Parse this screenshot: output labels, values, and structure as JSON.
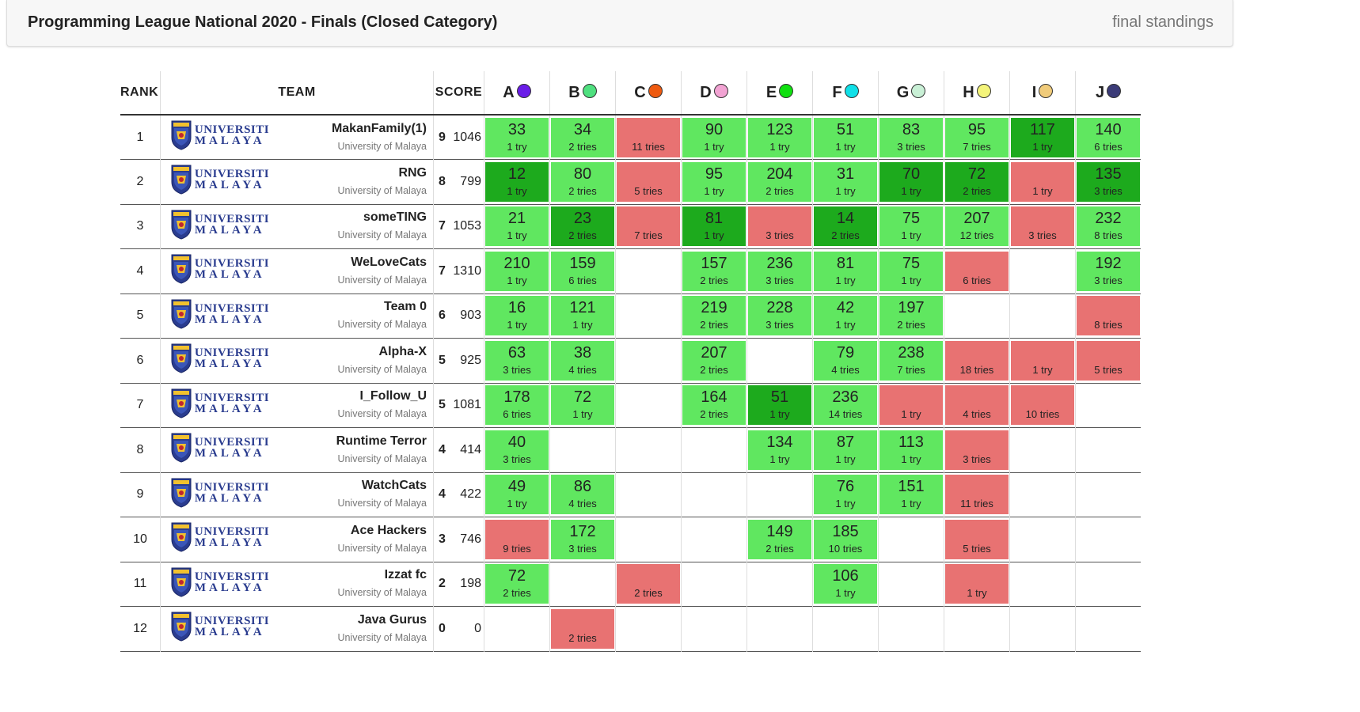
{
  "header": {
    "title": "Programming League National 2020 - Finals (Closed Category)",
    "status": "final standings"
  },
  "columns": {
    "rank": "RANK",
    "team": "TEAM",
    "score": "SCORE"
  },
  "logo": {
    "line1": "UNIVERSITI",
    "line2": "MALAYA",
    "icon": "university-shield-icon"
  },
  "problems": [
    {
      "label": "A",
      "color": "#6a1de8"
    },
    {
      "label": "B",
      "color": "#4fe07f"
    },
    {
      "label": "C",
      "color": "#ee5a10"
    },
    {
      "label": "D",
      "color": "#f2a3d3"
    },
    {
      "label": "E",
      "color": "#10e010"
    },
    {
      "label": "F",
      "color": "#10e0e8"
    },
    {
      "label": "G",
      "color": "#c9f0d6"
    },
    {
      "label": "H",
      "color": "#f4f47a"
    },
    {
      "label": "I",
      "color": "#f0cb7a"
    },
    {
      "label": "J",
      "color": "#3b3b78"
    }
  ],
  "teams": [
    {
      "rank": "1",
      "name": "MakanFamily(1)",
      "affiliation": "University of Malaya",
      "solved": "9",
      "penalty": "1046",
      "cells": [
        {
          "s": "solved",
          "time": "33",
          "tries": "1 try"
        },
        {
          "s": "solved",
          "time": "34",
          "tries": "2 tries"
        },
        {
          "s": "wrong",
          "time": "",
          "tries": "11 tries"
        },
        {
          "s": "solved",
          "time": "90",
          "tries": "1 try"
        },
        {
          "s": "solved",
          "time": "123",
          "tries": "1 try"
        },
        {
          "s": "solved",
          "time": "51",
          "tries": "1 try"
        },
        {
          "s": "solved",
          "time": "83",
          "tries": "3 tries"
        },
        {
          "s": "solved",
          "time": "95",
          "tries": "7 tries"
        },
        {
          "s": "first",
          "time": "117",
          "tries": "1 try"
        },
        {
          "s": "solved",
          "time": "140",
          "tries": "6 tries"
        }
      ]
    },
    {
      "rank": "2",
      "name": "RNG",
      "affiliation": "University of Malaya",
      "solved": "8",
      "penalty": "799",
      "cells": [
        {
          "s": "first",
          "time": "12",
          "tries": "1 try"
        },
        {
          "s": "solved",
          "time": "80",
          "tries": "2 tries"
        },
        {
          "s": "wrong",
          "time": "",
          "tries": "5 tries"
        },
        {
          "s": "solved",
          "time": "95",
          "tries": "1 try"
        },
        {
          "s": "solved",
          "time": "204",
          "tries": "2 tries"
        },
        {
          "s": "solved",
          "time": "31",
          "tries": "1 try"
        },
        {
          "s": "first",
          "time": "70",
          "tries": "1 try"
        },
        {
          "s": "first",
          "time": "72",
          "tries": "2 tries"
        },
        {
          "s": "wrong",
          "time": "",
          "tries": "1 try"
        },
        {
          "s": "first",
          "time": "135",
          "tries": "3 tries"
        }
      ]
    },
    {
      "rank": "3",
      "name": "someTING",
      "affiliation": "University of Malaya",
      "solved": "7",
      "penalty": "1053",
      "cells": [
        {
          "s": "solved",
          "time": "21",
          "tries": "1 try"
        },
        {
          "s": "first",
          "time": "23",
          "tries": "2 tries"
        },
        {
          "s": "wrong",
          "time": "",
          "tries": "7 tries"
        },
        {
          "s": "first",
          "time": "81",
          "tries": "1 try"
        },
        {
          "s": "wrong",
          "time": "",
          "tries": "3 tries"
        },
        {
          "s": "first",
          "time": "14",
          "tries": "2 tries"
        },
        {
          "s": "solved",
          "time": "75",
          "tries": "1 try"
        },
        {
          "s": "solved",
          "time": "207",
          "tries": "12 tries"
        },
        {
          "s": "wrong",
          "time": "",
          "tries": "3 tries"
        },
        {
          "s": "solved",
          "time": "232",
          "tries": "8 tries"
        }
      ]
    },
    {
      "rank": "4",
      "name": "WeLoveCats",
      "affiliation": "University of Malaya",
      "solved": "7",
      "penalty": "1310",
      "cells": [
        {
          "s": "solved",
          "time": "210",
          "tries": "1 try"
        },
        {
          "s": "solved",
          "time": "159",
          "tries": "6 tries"
        },
        {
          "s": "",
          "time": "",
          "tries": ""
        },
        {
          "s": "solved",
          "time": "157",
          "tries": "2 tries"
        },
        {
          "s": "solved",
          "time": "236",
          "tries": "3 tries"
        },
        {
          "s": "solved",
          "time": "81",
          "tries": "1 try"
        },
        {
          "s": "solved",
          "time": "75",
          "tries": "1 try"
        },
        {
          "s": "wrong",
          "time": "",
          "tries": "6 tries"
        },
        {
          "s": "",
          "time": "",
          "tries": ""
        },
        {
          "s": "solved",
          "time": "192",
          "tries": "3 tries"
        }
      ]
    },
    {
      "rank": "5",
      "name": "Team 0",
      "affiliation": "University of Malaya",
      "solved": "6",
      "penalty": "903",
      "cells": [
        {
          "s": "solved",
          "time": "16",
          "tries": "1 try"
        },
        {
          "s": "solved",
          "time": "121",
          "tries": "1 try"
        },
        {
          "s": "",
          "time": "",
          "tries": ""
        },
        {
          "s": "solved",
          "time": "219",
          "tries": "2 tries"
        },
        {
          "s": "solved",
          "time": "228",
          "tries": "3 tries"
        },
        {
          "s": "solved",
          "time": "42",
          "tries": "1 try"
        },
        {
          "s": "solved",
          "time": "197",
          "tries": "2 tries"
        },
        {
          "s": "",
          "time": "",
          "tries": ""
        },
        {
          "s": "",
          "time": "",
          "tries": ""
        },
        {
          "s": "wrong",
          "time": "",
          "tries": "8 tries"
        }
      ]
    },
    {
      "rank": "6",
      "name": "Alpha-X",
      "affiliation": "University of Malaya",
      "solved": "5",
      "penalty": "925",
      "cells": [
        {
          "s": "solved",
          "time": "63",
          "tries": "3 tries"
        },
        {
          "s": "solved",
          "time": "38",
          "tries": "4 tries"
        },
        {
          "s": "",
          "time": "",
          "tries": ""
        },
        {
          "s": "solved",
          "time": "207",
          "tries": "2 tries"
        },
        {
          "s": "",
          "time": "",
          "tries": ""
        },
        {
          "s": "solved",
          "time": "79",
          "tries": "4 tries"
        },
        {
          "s": "solved",
          "time": "238",
          "tries": "7 tries"
        },
        {
          "s": "wrong",
          "time": "",
          "tries": "18 tries"
        },
        {
          "s": "wrong",
          "time": "",
          "tries": "1 try"
        },
        {
          "s": "wrong",
          "time": "",
          "tries": "5 tries"
        }
      ]
    },
    {
      "rank": "7",
      "name": "I_Follow_U",
      "affiliation": "University of Malaya",
      "solved": "5",
      "penalty": "1081",
      "cells": [
        {
          "s": "solved",
          "time": "178",
          "tries": "6 tries"
        },
        {
          "s": "solved",
          "time": "72",
          "tries": "1 try"
        },
        {
          "s": "",
          "time": "",
          "tries": ""
        },
        {
          "s": "solved",
          "time": "164",
          "tries": "2 tries"
        },
        {
          "s": "first",
          "time": "51",
          "tries": "1 try"
        },
        {
          "s": "solved",
          "time": "236",
          "tries": "14 tries"
        },
        {
          "s": "wrong",
          "time": "",
          "tries": "1 try"
        },
        {
          "s": "wrong",
          "time": "",
          "tries": "4 tries"
        },
        {
          "s": "wrong",
          "time": "",
          "tries": "10 tries"
        },
        {
          "s": "",
          "time": "",
          "tries": ""
        }
      ]
    },
    {
      "rank": "8",
      "name": "Runtime Terror",
      "affiliation": "University of Malaya",
      "solved": "4",
      "penalty": "414",
      "cells": [
        {
          "s": "solved",
          "time": "40",
          "tries": "3 tries"
        },
        {
          "s": "",
          "time": "",
          "tries": ""
        },
        {
          "s": "",
          "time": "",
          "tries": ""
        },
        {
          "s": "",
          "time": "",
          "tries": ""
        },
        {
          "s": "solved",
          "time": "134",
          "tries": "1 try"
        },
        {
          "s": "solved",
          "time": "87",
          "tries": "1 try"
        },
        {
          "s": "solved",
          "time": "113",
          "tries": "1 try"
        },
        {
          "s": "wrong",
          "time": "",
          "tries": "3 tries"
        },
        {
          "s": "",
          "time": "",
          "tries": ""
        },
        {
          "s": "",
          "time": "",
          "tries": ""
        }
      ]
    },
    {
      "rank": "9",
      "name": "WatchCats",
      "affiliation": "University of Malaya",
      "solved": "4",
      "penalty": "422",
      "cells": [
        {
          "s": "solved",
          "time": "49",
          "tries": "1 try"
        },
        {
          "s": "solved",
          "time": "86",
          "tries": "4 tries"
        },
        {
          "s": "",
          "time": "",
          "tries": ""
        },
        {
          "s": "",
          "time": "",
          "tries": ""
        },
        {
          "s": "",
          "time": "",
          "tries": ""
        },
        {
          "s": "solved",
          "time": "76",
          "tries": "1 try"
        },
        {
          "s": "solved",
          "time": "151",
          "tries": "1 try"
        },
        {
          "s": "wrong",
          "time": "",
          "tries": "11 tries"
        },
        {
          "s": "",
          "time": "",
          "tries": ""
        },
        {
          "s": "",
          "time": "",
          "tries": ""
        }
      ]
    },
    {
      "rank": "10",
      "name": "Ace Hackers",
      "affiliation": "University of Malaya",
      "solved": "3",
      "penalty": "746",
      "cells": [
        {
          "s": "wrong",
          "time": "",
          "tries": "9 tries"
        },
        {
          "s": "solved",
          "time": "172",
          "tries": "3 tries"
        },
        {
          "s": "",
          "time": "",
          "tries": ""
        },
        {
          "s": "",
          "time": "",
          "tries": ""
        },
        {
          "s": "solved",
          "time": "149",
          "tries": "2 tries"
        },
        {
          "s": "solved",
          "time": "185",
          "tries": "10 tries"
        },
        {
          "s": "",
          "time": "",
          "tries": ""
        },
        {
          "s": "wrong",
          "time": "",
          "tries": "5 tries"
        },
        {
          "s": "",
          "time": "",
          "tries": ""
        },
        {
          "s": "",
          "time": "",
          "tries": ""
        }
      ]
    },
    {
      "rank": "11",
      "name": "Izzat fc",
      "affiliation": "University of Malaya",
      "solved": "2",
      "penalty": "198",
      "cells": [
        {
          "s": "solved",
          "time": "72",
          "tries": "2 tries"
        },
        {
          "s": "",
          "time": "",
          "tries": ""
        },
        {
          "s": "wrong",
          "time": "",
          "tries": "2 tries"
        },
        {
          "s": "",
          "time": "",
          "tries": ""
        },
        {
          "s": "",
          "time": "",
          "tries": ""
        },
        {
          "s": "solved",
          "time": "106",
          "tries": "1 try"
        },
        {
          "s": "",
          "time": "",
          "tries": ""
        },
        {
          "s": "wrong",
          "time": "",
          "tries": "1 try"
        },
        {
          "s": "",
          "time": "",
          "tries": ""
        },
        {
          "s": "",
          "time": "",
          "tries": ""
        }
      ]
    },
    {
      "rank": "12",
      "name": "Java Gurus",
      "affiliation": "University of Malaya",
      "solved": "0",
      "penalty": "0",
      "cells": [
        {
          "s": "",
          "time": "",
          "tries": ""
        },
        {
          "s": "wrong",
          "time": "",
          "tries": "2 tries"
        },
        {
          "s": "",
          "time": "",
          "tries": ""
        },
        {
          "s": "",
          "time": "",
          "tries": ""
        },
        {
          "s": "",
          "time": "",
          "tries": ""
        },
        {
          "s": "",
          "time": "",
          "tries": ""
        },
        {
          "s": "",
          "time": "",
          "tries": ""
        },
        {
          "s": "",
          "time": "",
          "tries": ""
        },
        {
          "s": "",
          "time": "",
          "tries": ""
        },
        {
          "s": "",
          "time": "",
          "tries": ""
        }
      ]
    }
  ]
}
